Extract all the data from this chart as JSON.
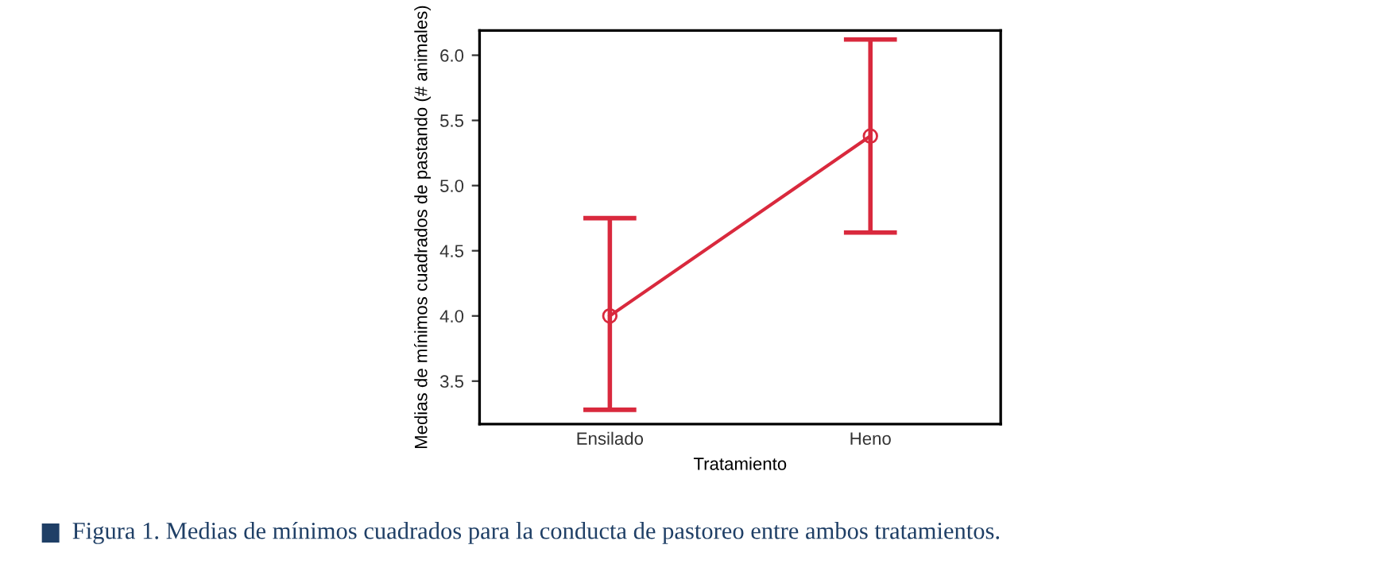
{
  "chart_data": {
    "type": "line",
    "xlabel": "Tratamiento",
    "ylabel": "Medias de mínimos cuadrados de pastando (# animales)",
    "categories": [
      "Ensilado",
      "Heno"
    ],
    "series": [
      {
        "color": "#d9293d",
        "values": [
          4.0,
          5.38
        ],
        "errors": [
          [
            3.28,
            4.75
          ],
          [
            4.64,
            6.12
          ]
        ]
      }
    ],
    "ylim": [
      3.17,
      6.19
    ],
    "yticks": [
      3.5,
      {
        "value": 4,
        "label": "4.0"
      },
      4.5,
      {
        "value": 5,
        "label": "5.0"
      },
      5.5,
      {
        "value": 6,
        "label": "6.0"
      }
    ],
    "marker": "circle",
    "line_style": "solid",
    "grid": false,
    "legend": false,
    "annotations": [
      "Figura 1. Medias de mínimos cuadrados para la conducta de pastoreo entre ambos tratamientos."
    ]
  }
}
